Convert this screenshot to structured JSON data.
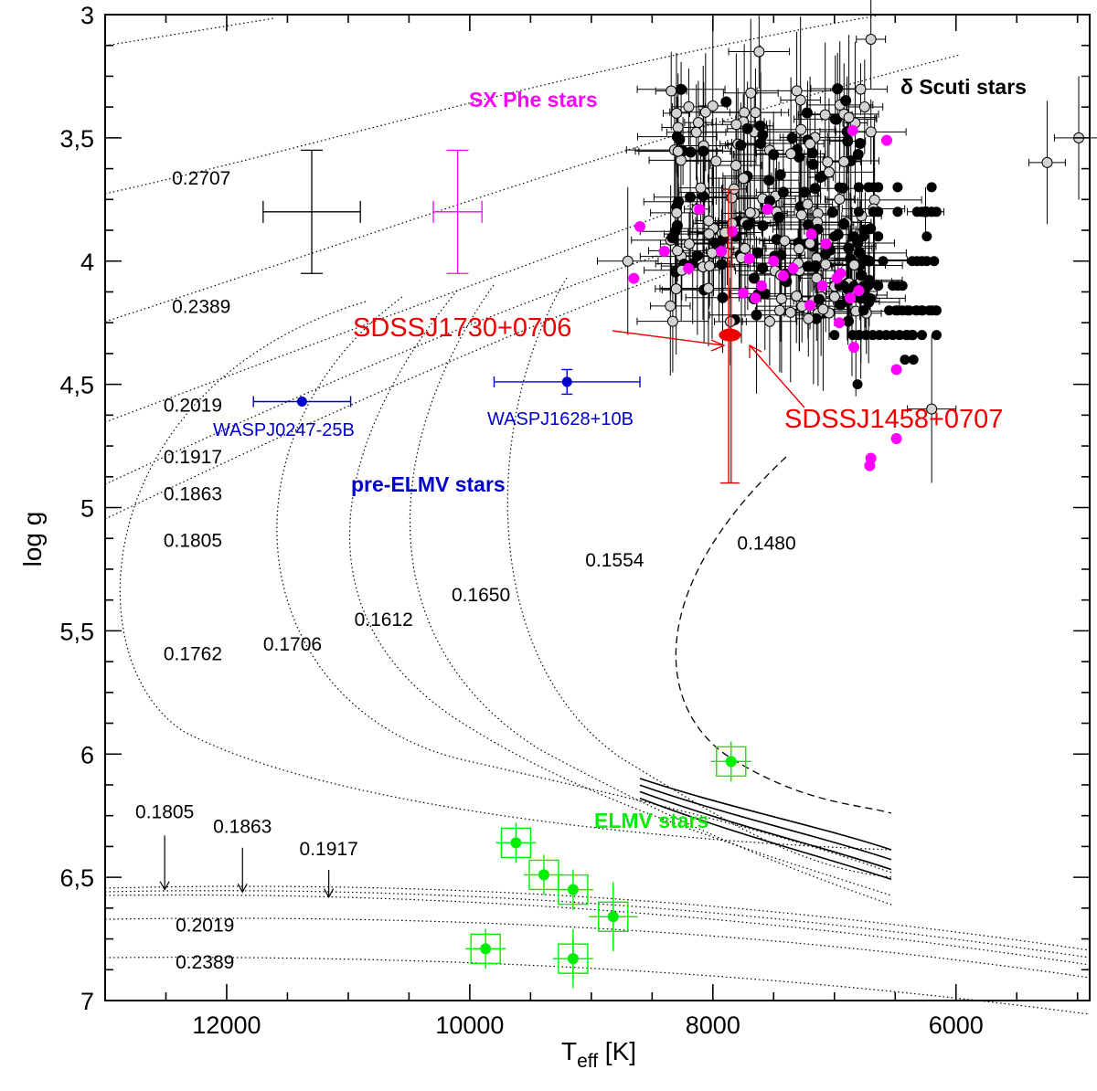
{
  "chart_data": {
    "type": "scatter",
    "title": "",
    "xlabel_main": "T",
    "xlabel_sub": "eff",
    "xlabel_unit": " [K]",
    "ylabel": "log g",
    "xlim": [
      13000,
      4900
    ],
    "ylim": [
      3,
      7
    ],
    "xticks": [
      12000,
      10000,
      8000,
      6000
    ],
    "xtick_labels": [
      "12000",
      "10000",
      "8000",
      "6000"
    ],
    "yticks": [
      3,
      3.5,
      4,
      4.5,
      5,
      5.5,
      6,
      6.5,
      7
    ],
    "ytick_labels": [
      "3",
      "3,5",
      "4",
      "4,5",
      "5",
      "5,5",
      "6",
      "6,5",
      "7"
    ],
    "colors": {
      "delta_scuti": "#000000",
      "sx_phe": "#ff00ff",
      "pre_elmv": "#0000cc",
      "elmv": "#00ee00",
      "sdss": "#ee0000",
      "gray_marker": "#d3d3d3"
    },
    "group_labels": {
      "delta_scuti": "δ Scuti stars",
      "sx_phe": "SX Phe stars",
      "pre_elmv": "pre-ELMV stars",
      "elmv": "ELMV stars"
    },
    "error_samples": {
      "delta_scuti": {
        "x": 11300,
        "y": 3.8,
        "xerr": 400,
        "yerr": 0.25
      },
      "sx_phe": {
        "x": 10100,
        "y": 3.8,
        "xerr": 200,
        "yerr": 0.25
      }
    },
    "track_labels": {
      "upper": [
        {
          "text": "0.2707",
          "x": 12450,
          "y": 3.69
        },
        {
          "text": "0.2389",
          "x": 12450,
          "y": 4.21
        },
        {
          "text": "0.2019",
          "x": 12520,
          "y": 4.61
        },
        {
          "text": "0.1917",
          "x": 12520,
          "y": 4.82
        },
        {
          "text": "0.1863",
          "x": 12520,
          "y": 4.97
        },
        {
          "text": "0.1805",
          "x": 12520,
          "y": 5.16
        },
        {
          "text": "0.1762",
          "x": 12520,
          "y": 5.62
        },
        {
          "text": "0.1706",
          "x": 11700,
          "y": 5.58
        },
        {
          "text": "0.1612",
          "x": 10950,
          "y": 5.48
        },
        {
          "text": "0.1650",
          "x": 10150,
          "y": 5.38
        },
        {
          "text": "0.1554",
          "x": 9050,
          "y": 5.24
        },
        {
          "text": "0.1480",
          "x": 7800,
          "y": 5.17
        }
      ],
      "lower": [
        {
          "text": "0.2019",
          "x": 12420,
          "y": 6.72
        },
        {
          "text": "0.2389",
          "x": 12420,
          "y": 6.87
        }
      ],
      "arrows": [
        {
          "text": "0.1805",
          "x": 12510,
          "label_y": 6.26,
          "from": 6.33,
          "to": 6.55
        },
        {
          "text": "0.1863",
          "x": 11870,
          "label_y": 6.32,
          "from": 6.38,
          "to": 6.56
        },
        {
          "text": "0.1917",
          "x": 11160,
          "label_y": 6.41,
          "from": 6.47,
          "to": 6.58
        }
      ]
    },
    "series": [
      {
        "name": "pre-ELMV stars",
        "points": [
          {
            "label": "WASPJ0247-25B",
            "x": 11380,
            "y": 4.57,
            "xerr": 400,
            "yerr": 0
          },
          {
            "label": "WASPJ1628+10B",
            "x": 9200,
            "y": 4.49,
            "xerr": 600,
            "yerr": 0.05
          }
        ]
      },
      {
        "name": "ELMV stars",
        "points": [
          {
            "x": 7850,
            "y": 6.03,
            "xerr": 120,
            "yerr": 0.08
          },
          {
            "x": 9620,
            "y": 6.36,
            "xerr": 140,
            "yerr": 0.06
          },
          {
            "x": 9390,
            "y": 6.49,
            "xerr": 140,
            "yerr": 0.06
          },
          {
            "x": 9150,
            "y": 6.55,
            "xerr": 140,
            "yerr": 0.06
          },
          {
            "x": 8820,
            "y": 6.66,
            "xerr": 200,
            "yerr": 0.14
          },
          {
            "x": 9150,
            "y": 6.83,
            "xerr": 0,
            "yerr": 0.12
          },
          {
            "x": 9870,
            "y": 6.79,
            "xerr": 140,
            "yerr": 0.06
          }
        ]
      },
      {
        "name": "SX Phe stars",
        "points": [
          {
            "x": 6850,
            "y": 3.47
          },
          {
            "x": 6570,
            "y": 3.51
          },
          {
            "x": 8600,
            "y": 3.86
          },
          {
            "x": 8110,
            "y": 3.79
          },
          {
            "x": 8400,
            "y": 3.96
          },
          {
            "x": 7840,
            "y": 3.88
          },
          {
            "x": 7550,
            "y": 3.79
          },
          {
            "x": 7190,
            "y": 3.89
          },
          {
            "x": 7070,
            "y": 3.93
          },
          {
            "x": 8200,
            "y": 4.03
          },
          {
            "x": 7930,
            "y": 3.96
          },
          {
            "x": 8650,
            "y": 4.07
          },
          {
            "x": 7700,
            "y": 3.99
          },
          {
            "x": 7500,
            "y": 4.0
          },
          {
            "x": 7420,
            "y": 4.06
          },
          {
            "x": 7340,
            "y": 4.03
          },
          {
            "x": 7100,
            "y": 4.1
          },
          {
            "x": 6950,
            "y": 4.05
          },
          {
            "x": 7750,
            "y": 4.13
          },
          {
            "x": 7600,
            "y": 4.1
          },
          {
            "x": 7200,
            "y": 4.18
          },
          {
            "x": 6870,
            "y": 4.15
          },
          {
            "x": 6800,
            "y": 4.12
          },
          {
            "x": 6960,
            "y": 4.25
          },
          {
            "x": 7650,
            "y": 4.15
          },
          {
            "x": 6980,
            "y": 4.07
          },
          {
            "x": 6840,
            "y": 4.35
          },
          {
            "x": 6490,
            "y": 4.44
          },
          {
            "x": 6700,
            "y": 4.8
          },
          {
            "x": 6710,
            "y": 4.83
          },
          {
            "x": 6490,
            "y": 4.72
          }
        ]
      }
    ]
  },
  "labels": {
    "sdss1730": "SDSSJ1730+0706",
    "sdss1458": "SDSSJ1458+0707",
    "wasp0247": "WASPJ0247-25B",
    "wasp1628": "WASPJ1628+10B"
  }
}
